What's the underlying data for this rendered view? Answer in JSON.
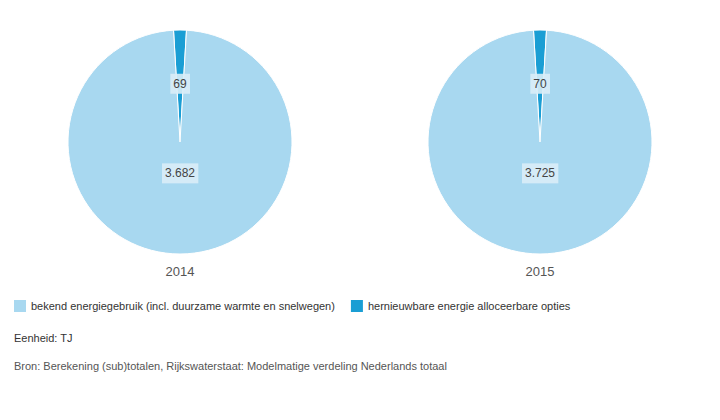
{
  "chart_data": {
    "type": "pie",
    "categories": [
      "hernieuwbare energie alloceerbare opties",
      "bekend energiegebruik (incl. duurzame warmte en snelwegen)"
    ],
    "series": [
      {
        "name": "2014",
        "values": [
          69,
          3682
        ],
        "value_labels": [
          "69",
          "3.682"
        ],
        "colors": [
          "#1a9ed4",
          "#a8d8f0"
        ]
      },
      {
        "name": "2015",
        "values": [
          70,
          3725
        ],
        "value_labels": [
          "70",
          "3.725"
        ],
        "colors": [
          "#1a9ed4",
          "#a8d8f0"
        ]
      }
    ],
    "data_labels": true,
    "legend": "lower left",
    "annotations": [
      "Eenheid: TJ",
      "Bron: Berekening  (sub)totalen, Rijkswaterstaat: Modelmatige verdeling  Nederlands totaal"
    ]
  }
}
